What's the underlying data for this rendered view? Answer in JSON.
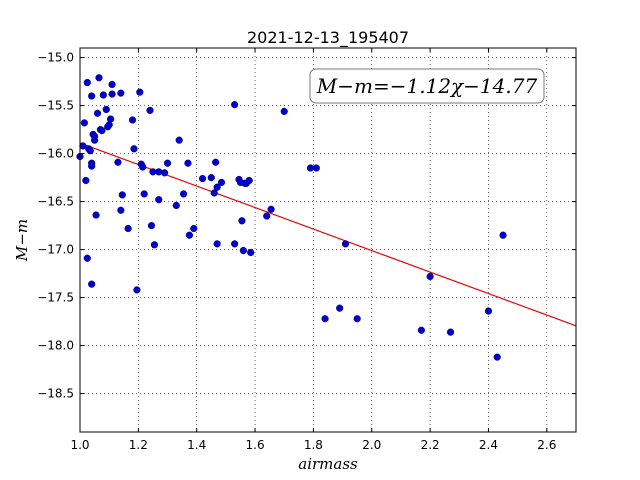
{
  "chart_data": {
    "type": "scatter",
    "title": "2021-12-13_195407",
    "xlabel": "airmass",
    "ylabel": "M−m",
    "xlim": [
      1.0,
      2.7
    ],
    "ylim": [
      -18.9,
      -14.9
    ],
    "y_inverted": true,
    "x_ticks": [
      1.0,
      1.2,
      1.4,
      1.6,
      1.8,
      2.0,
      2.2,
      2.4,
      2.6
    ],
    "x_tick_labels": [
      "1.0",
      "1.2",
      "1.4",
      "1.6",
      "1.8",
      "2.0",
      "2.2",
      "2.4",
      "2.6"
    ],
    "y_ticks": [
      -15.0,
      -15.5,
      -16.0,
      -16.5,
      -17.0,
      -17.5,
      -18.0,
      -18.5
    ],
    "y_tick_labels": [
      "−15.0",
      "−15.5",
      "−16.0",
      "−16.5",
      "−17.0",
      "−17.5",
      "−18.0",
      "−18.5"
    ],
    "grid": true,
    "grid_style": "dotted",
    "annotation": "M−m=−1.12χ−14.77",
    "annotation_position": "top-right",
    "fit": {
      "slope": -1.12,
      "intercept": -14.77,
      "color": "#ee0000"
    },
    "point_color": "#0000cc",
    "series": [
      {
        "points": [
          [
            1.0,
            -16.03
          ],
          [
            1.01,
            -15.92
          ],
          [
            1.015,
            -15.68
          ],
          [
            1.02,
            -16.28
          ],
          [
            1.025,
            -15.26
          ],
          [
            1.025,
            -17.09
          ],
          [
            1.03,
            -15.95
          ],
          [
            1.035,
            -15.97
          ],
          [
            1.04,
            -17.36
          ],
          [
            1.04,
            -15.4
          ],
          [
            1.04,
            -16.1
          ],
          [
            1.04,
            -16.13
          ],
          [
            1.045,
            -15.8
          ],
          [
            1.05,
            -15.82
          ],
          [
            1.05,
            -15.86
          ],
          [
            1.055,
            -16.64
          ],
          [
            1.06,
            -15.58
          ],
          [
            1.065,
            -15.21
          ],
          [
            1.07,
            -15.75
          ],
          [
            1.075,
            -15.76
          ],
          [
            1.08,
            -15.39
          ],
          [
            1.09,
            -15.54
          ],
          [
            1.095,
            -15.72
          ],
          [
            1.1,
            -15.7
          ],
          [
            1.105,
            -15.64
          ],
          [
            1.11,
            -15.28
          ],
          [
            1.11,
            -15.38
          ],
          [
            1.13,
            -16.09
          ],
          [
            1.14,
            -15.37
          ],
          [
            1.14,
            -16.59
          ],
          [
            1.145,
            -16.43
          ],
          [
            1.165,
            -16.78
          ],
          [
            1.18,
            -15.65
          ],
          [
            1.185,
            -15.95
          ],
          [
            1.195,
            -17.42
          ],
          [
            1.205,
            -15.36
          ],
          [
            1.21,
            -16.11
          ],
          [
            1.215,
            -16.14
          ],
          [
            1.22,
            -16.42
          ],
          [
            1.24,
            -15.55
          ],
          [
            1.245,
            -16.75
          ],
          [
            1.25,
            -16.19
          ],
          [
            1.255,
            -16.95
          ],
          [
            1.27,
            -16.48
          ],
          [
            1.27,
            -16.19
          ],
          [
            1.29,
            -16.2
          ],
          [
            1.3,
            -16.1
          ],
          [
            1.33,
            -16.54
          ],
          [
            1.34,
            -15.86
          ],
          [
            1.355,
            -16.42
          ],
          [
            1.37,
            -16.1
          ],
          [
            1.375,
            -16.85
          ],
          [
            1.39,
            -16.78
          ],
          [
            1.42,
            -16.26
          ],
          [
            1.45,
            -16.25
          ],
          [
            1.46,
            -16.41
          ],
          [
            1.465,
            -16.09
          ],
          [
            1.47,
            -16.94
          ],
          [
            1.47,
            -16.35
          ],
          [
            1.485,
            -16.3
          ],
          [
            1.53,
            -15.49
          ],
          [
            1.53,
            -16.94
          ],
          [
            1.545,
            -16.27
          ],
          [
            1.55,
            -16.3
          ],
          [
            1.555,
            -16.7
          ],
          [
            1.56,
            -17.01
          ],
          [
            1.565,
            -16.31
          ],
          [
            1.57,
            -16.31
          ],
          [
            1.58,
            -16.28
          ],
          [
            1.585,
            -17.03
          ],
          [
            1.64,
            -16.65
          ],
          [
            1.655,
            -16.58
          ],
          [
            1.7,
            -15.56
          ],
          [
            1.79,
            -16.15
          ],
          [
            1.81,
            -16.15
          ],
          [
            1.84,
            -17.72
          ],
          [
            1.89,
            -17.61
          ],
          [
            1.91,
            -16.94
          ],
          [
            1.95,
            -17.72
          ],
          [
            2.17,
            -17.84
          ],
          [
            2.2,
            -17.28
          ],
          [
            2.27,
            -17.86
          ],
          [
            2.4,
            -17.64
          ],
          [
            2.43,
            -18.12
          ],
          [
            2.45,
            -16.85
          ]
        ]
      }
    ]
  }
}
